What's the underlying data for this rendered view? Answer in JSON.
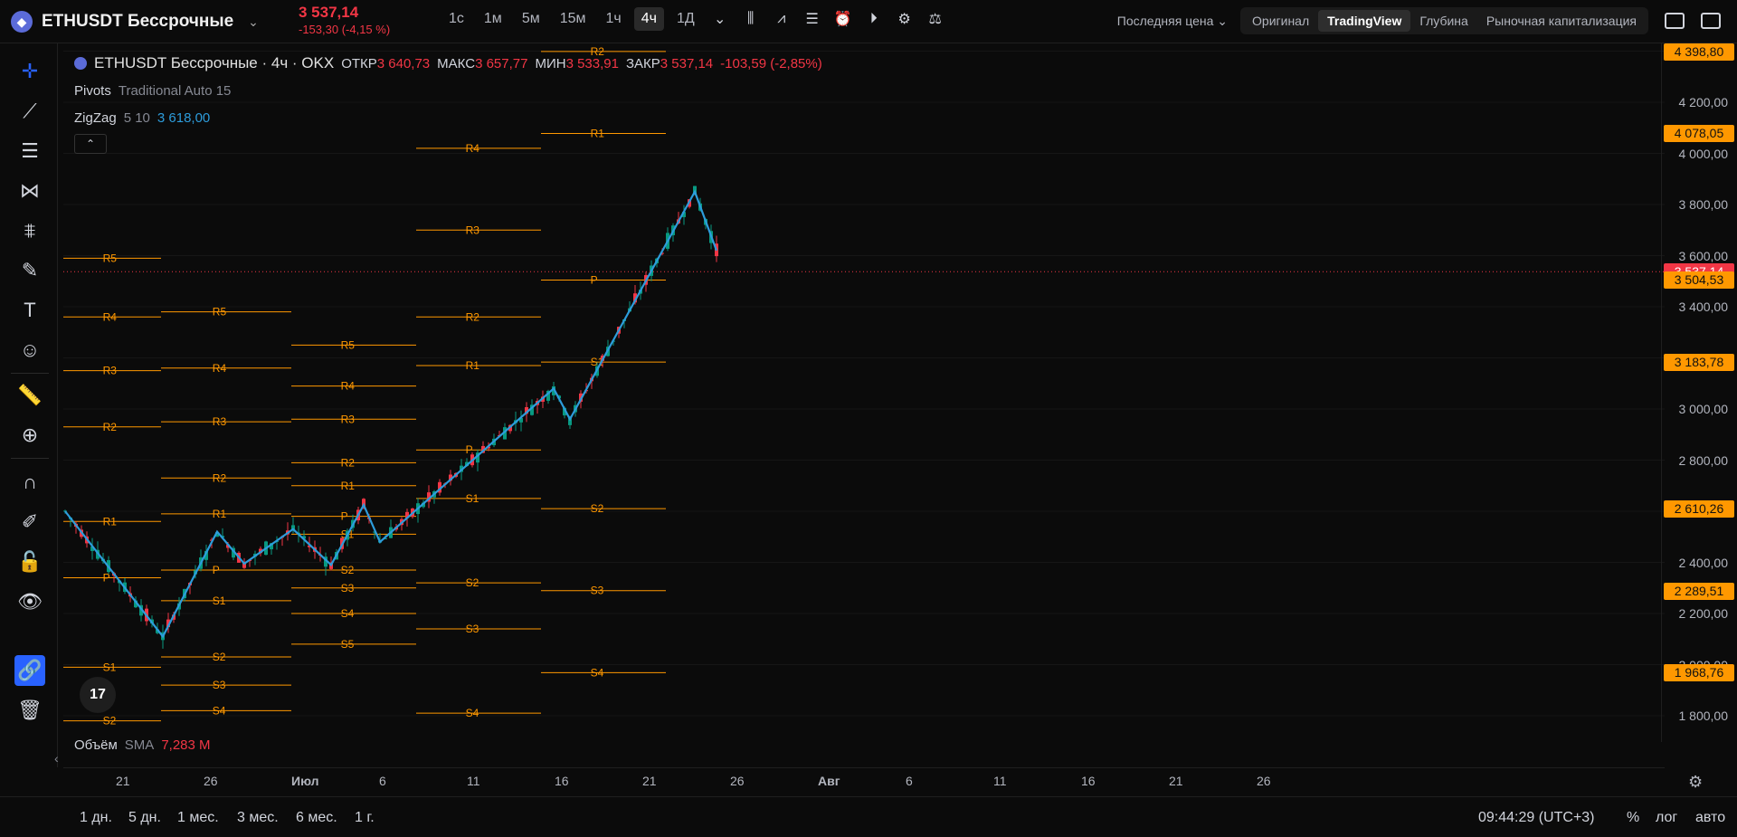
{
  "header": {
    "symbol": "ETHUSDT Бессрочные",
    "last_price": "3 537,14",
    "change": "-153,30 (-4,15 %)",
    "intervals": [
      "1с",
      "1м",
      "5м",
      "15м",
      "1ч",
      "4ч",
      "1Д"
    ],
    "active_interval": "4ч",
    "price_type": "Последняя цена",
    "view_tabs": [
      "Оригинал",
      "TradingView",
      "Глубина",
      "Рыночная капитализация"
    ],
    "active_view": "TradingView"
  },
  "legend": {
    "title": "ETHUSDT Бессрочные · 4ч · OKX",
    "open_label": "ОТКР",
    "open": "3 640,73",
    "high_label": "МАКС",
    "high": "3 657,77",
    "low_label": "МИН",
    "low": "3 533,91",
    "close_label": "ЗАКР",
    "close": "3 537,14",
    "close_change": "-103,59 (-2,85%)",
    "pivots_name": "Pivots",
    "pivots_params": "Traditional Auto 15",
    "zigzag_name": "ZigZag",
    "zigzag_params": "5 10",
    "zigzag_value": "3 618,00"
  },
  "volume": {
    "name": "Объём",
    "sma": "SMA",
    "value": "7,283 M"
  },
  "price_scale": {
    "ticks": [
      "4 200,00",
      "4 000,00",
      "3 800,00",
      "3 600,00",
      "3 400,00",
      "3 000,00",
      "2 800,00",
      "2 600,00",
      "2 400,00",
      "2 200,00",
      "2 000,00",
      "1 800,00"
    ],
    "tags": [
      {
        "label": "4 398,80",
        "color": "#ff9800"
      },
      {
        "label": "4 078,05",
        "color": "#ff9800"
      },
      {
        "label": "3 537,14",
        "color": "#f23645"
      },
      {
        "label": "3 504,53",
        "color": "#ff9800"
      },
      {
        "label": "3 183,78",
        "color": "#ff9800"
      },
      {
        "label": "2 610,26",
        "color": "#ff9800"
      },
      {
        "label": "2 289,51",
        "color": "#ff9800"
      },
      {
        "label": "1 968,76",
        "color": "#ff9800"
      }
    ]
  },
  "time_axis": [
    "21",
    "26",
    "Июл",
    "6",
    "11",
    "16",
    "21",
    "26",
    "Авг",
    "6",
    "11",
    "16",
    "21",
    "26"
  ],
  "bottom": {
    "ranges": [
      "1 дн.",
      "5 дн.",
      "1 мес.",
      "3 мес.",
      "6 мес.",
      "1 г."
    ],
    "clock": "09:44:29 (UTC+3)",
    "percent": "%",
    "log": "лог",
    "auto": "авто"
  },
  "pivot_labels": [
    "R5",
    "R4",
    "R3",
    "R2",
    "R1",
    "P",
    "S1",
    "S2",
    "S3",
    "S4",
    "S5"
  ],
  "tv_logo": "17",
  "colors": {
    "up": "#089981",
    "down": "#f23645",
    "pivot": "#ff9800",
    "zigzag": "#2d9cdb",
    "accent": "#2962ff"
  },
  "chart_data": {
    "type": "candlestick",
    "title": "ETHUSDT Бессрочные · 4ч · OKX",
    "ylim": [
      1750,
      4450
    ],
    "zigzag": [
      [
        0,
        2600
      ],
      [
        18,
        2110
      ],
      [
        28,
        2520
      ],
      [
        33,
        2395
      ],
      [
        42,
        2530
      ],
      [
        49,
        2390
      ],
      [
        55,
        2625
      ],
      [
        58,
        2480
      ],
      [
        90,
        3080
      ],
      [
        93,
        2960
      ],
      [
        116,
        3850
      ],
      [
        120,
        3620
      ]
    ],
    "pivot_periods": [
      {
        "x0": 0,
        "x1": 18,
        "levels": {
          "R5": 3590,
          "R4": 3360,
          "R3": 3150,
          "R2": 2930,
          "R1": 2560,
          "P": 2340,
          "S1": 1990,
          "S2": 1780
        }
      },
      {
        "x0": 18,
        "x1": 42,
        "levels": {
          "R5": 3380,
          "R4": 3160,
          "R3": 2950,
          "R2": 2730,
          "R1": 2590,
          "P": 2370,
          "S1": 2250,
          "S2": 2030,
          "S3": 1920,
          "S4": 1820
        }
      },
      {
        "x0": 42,
        "x1": 65,
        "levels": {
          "R5": 3250,
          "R4": 3090,
          "R3": 2960,
          "R2": 2790,
          "R1": 2700,
          "P": 2580,
          "S1": 2510,
          "S2": 2370,
          "S3": 2300,
          "S4": 2200,
          "S5": 2080
        }
      },
      {
        "x0": 65,
        "x1": 88,
        "levels": {
          "R4": 4020,
          "R3": 3700,
          "R2": 3360,
          "R1": 3170,
          "P": 2840,
          "S1": 2650,
          "S2": 2320,
          "S3": 2140,
          "S4": 1810
        }
      },
      {
        "x0": 88,
        "x1": 111,
        "levels": {
          "R2": 4398.8,
          "R1": 4078.05,
          "P": 3504.53,
          "S1": 3183.78,
          "S2": 2610.26,
          "S3": 2289.51,
          "S4": 1968.76
        }
      }
    ]
  }
}
